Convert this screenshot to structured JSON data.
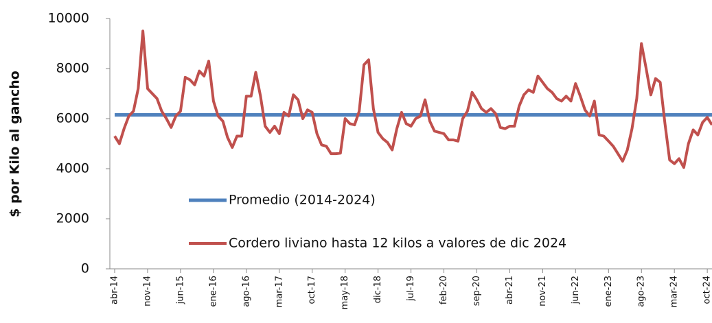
{
  "chart_data": {
    "type": "line",
    "y_label": "$ por Kilo al gancho",
    "categories": [
      "abr-14",
      null,
      null,
      null,
      null,
      null,
      null,
      "nov-14",
      null,
      null,
      null,
      null,
      null,
      null,
      "jun-15",
      null,
      null,
      null,
      null,
      null,
      null,
      "ene-16",
      null,
      null,
      null,
      null,
      null,
      null,
      "ago-16",
      null,
      null,
      null,
      null,
      null,
      null,
      "mar-17",
      null,
      null,
      null,
      null,
      null,
      null,
      "oct-17",
      null,
      null,
      null,
      null,
      null,
      null,
      "may-18",
      null,
      null,
      null,
      null,
      null,
      null,
      "dic-18",
      null,
      null,
      null,
      null,
      null,
      null,
      "jul-19",
      null,
      null,
      null,
      null,
      null,
      null,
      "feb-20",
      null,
      null,
      null,
      null,
      null,
      null,
      "sep-20",
      null,
      null,
      null,
      null,
      null,
      null,
      "abr-21",
      null,
      null,
      null,
      null,
      null,
      null,
      "nov-21",
      null,
      null,
      null,
      null,
      null,
      null,
      "jun-22",
      null,
      null,
      null,
      null,
      null,
      null,
      "ene-23",
      null,
      null,
      null,
      null,
      null,
      null,
      "ago-23",
      null,
      null,
      null,
      null,
      null,
      null,
      "mar-24",
      null,
      null,
      null,
      null,
      null,
      null,
      "oct-24",
      null
    ],
    "series": [
      {
        "name": "Promedio (2014-2024)",
        "color": "#4f81bd",
        "values": [
          6150,
          6150,
          6150,
          6150,
          6150,
          6150,
          6150,
          6150,
          6150,
          6150,
          6150,
          6150,
          6150,
          6150,
          6150,
          6150,
          6150,
          6150,
          6150,
          6150,
          6150,
          6150,
          6150,
          6150,
          6150,
          6150,
          6150,
          6150,
          6150,
          6150,
          6150,
          6150,
          6150,
          6150,
          6150,
          6150,
          6150,
          6150,
          6150,
          6150,
          6150,
          6150,
          6150,
          6150,
          6150,
          6150,
          6150,
          6150,
          6150,
          6150,
          6150,
          6150,
          6150,
          6150,
          6150,
          6150,
          6150,
          6150,
          6150,
          6150,
          6150,
          6150,
          6150,
          6150,
          6150,
          6150,
          6150,
          6150,
          6150,
          6150,
          6150,
          6150,
          6150,
          6150,
          6150,
          6150,
          6150,
          6150,
          6150,
          6150,
          6150,
          6150,
          6150,
          6150,
          6150,
          6150,
          6150,
          6150,
          6150,
          6150,
          6150,
          6150,
          6150,
          6150,
          6150,
          6150,
          6150,
          6150,
          6150,
          6150,
          6150,
          6150,
          6150,
          6150,
          6150,
          6150,
          6150,
          6150,
          6150,
          6150,
          6150,
          6150,
          6150,
          6150,
          6150,
          6150,
          6150,
          6150,
          6150,
          6150,
          6150,
          6150,
          6150,
          6150,
          6150,
          6150,
          6150,
          6150
        ]
      },
      {
        "name": "Cordero liviano hasta 12 kilos a valores de dic 2024",
        "color": "#c0504d",
        "values": [
          5300,
          5000,
          5600,
          6100,
          6300,
          7200,
          9500,
          7200,
          7000,
          6800,
          6300,
          6000,
          5650,
          6100,
          6300,
          7650,
          7550,
          7350,
          7900,
          7700,
          8300,
          6700,
          6100,
          5900,
          5250,
          4850,
          5300,
          5300,
          6900,
          6900,
          7850,
          6900,
          5700,
          5450,
          5700,
          5400,
          6250,
          6100,
          6950,
          6750,
          6000,
          6350,
          6250,
          5400,
          4950,
          4900,
          4600,
          4600,
          4620,
          6000,
          5800,
          5750,
          6300,
          8150,
          8350,
          6400,
          5450,
          5200,
          5050,
          4750,
          5600,
          6250,
          5800,
          5700,
          6000,
          6100,
          6750,
          5900,
          5500,
          5450,
          5400,
          5150,
          5150,
          5100,
          6000,
          6300,
          7050,
          6750,
          6400,
          6250,
          6400,
          6200,
          5650,
          5600,
          5700,
          5700,
          6500,
          6950,
          7150,
          7050,
          7700,
          7450,
          7200,
          7050,
          6800,
          6700,
          6900,
          6700,
          7400,
          6900,
          6350,
          6100,
          6700,
          5350,
          5300,
          5100,
          4900,
          4600,
          4300,
          4750,
          5600,
          6800,
          9000,
          8000,
          6950,
          7600,
          7450,
          5800,
          4350,
          4200,
          4400,
          4050,
          5000,
          5550,
          5350,
          5850,
          6050,
          5750
        ]
      }
    ],
    "ylim": [
      0,
      10000
    ],
    "yticks": [
      0,
      2000,
      4000,
      6000,
      8000,
      10000
    ],
    "grid": false
  }
}
